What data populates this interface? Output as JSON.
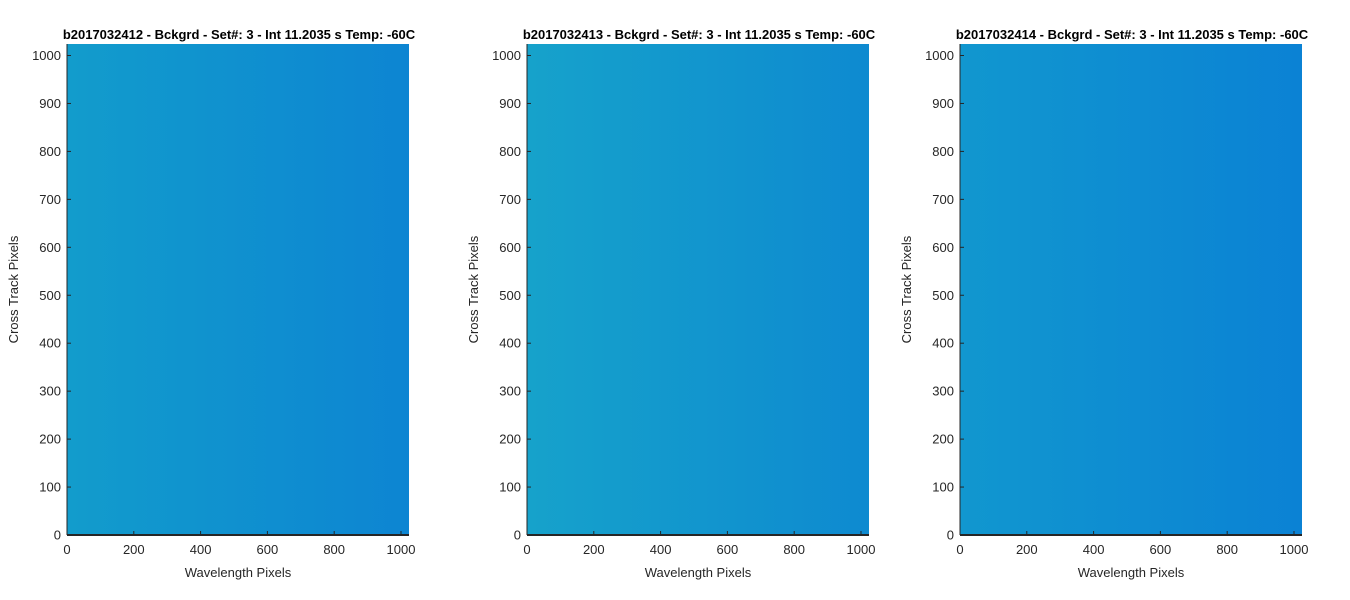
{
  "figure": {
    "background": "#ffffff",
    "colormap": "parula (near-uniform blue image)"
  },
  "chart_data": [
    {
      "type": "heatmap",
      "title": "b2017032412 - Bckgrd - Set#: 3 - Int 11.2035 s Temp: -60C",
      "xlabel": "Wavelength Pixels",
      "ylabel": "Cross Track Pixels",
      "xlim": [
        0,
        1024
      ],
      "ylim": [
        0,
        1024
      ],
      "xticks": [
        0,
        200,
        400,
        600,
        800,
        1000
      ],
      "yticks": [
        0,
        100,
        200,
        300,
        400,
        500,
        600,
        700,
        800,
        900,
        1000
      ],
      "grid": false,
      "colors": {
        "left": "#129ccc",
        "right": "#0d85d2"
      }
    },
    {
      "type": "heatmap",
      "title": "b2017032413 - Bckgrd - Set#: 3 - Int 11.2035 s Temp: -60C",
      "xlabel": "Wavelength Pixels",
      "ylabel": "Cross Track Pixels",
      "xlim": [
        0,
        1024
      ],
      "ylim": [
        0,
        1024
      ],
      "xticks": [
        0,
        200,
        400,
        600,
        800,
        1000
      ],
      "yticks": [
        0,
        100,
        200,
        300,
        400,
        500,
        600,
        700,
        800,
        900,
        1000
      ],
      "grid": false,
      "colors": {
        "left": "#16a2cb",
        "right": "#0e8ad0"
      }
    },
    {
      "type": "heatmap",
      "title": "b2017032414 - Bckgrd - Set#: 3 - Int 11.2035 s Temp: -60C",
      "xlabel": "Wavelength Pixels",
      "ylabel": "Cross Track Pixels",
      "xlim": [
        0,
        1024
      ],
      "ylim": [
        0,
        1024
      ],
      "xticks": [
        0,
        200,
        400,
        600,
        800,
        1000
      ],
      "yticks": [
        0,
        100,
        200,
        300,
        400,
        500,
        600,
        700,
        800,
        900,
        1000
      ],
      "grid": false,
      "colors": {
        "left": "#1197cf",
        "right": "#0b82d4"
      }
    }
  ]
}
